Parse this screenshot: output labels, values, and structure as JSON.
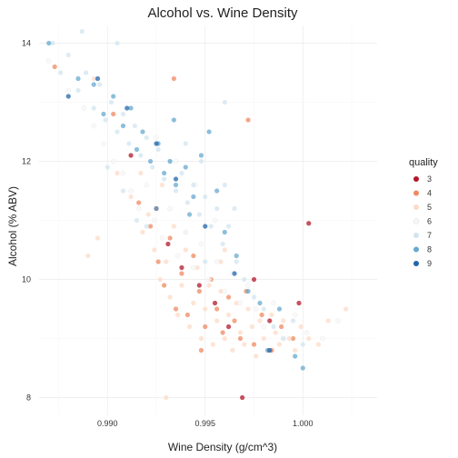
{
  "chart_data": {
    "type": "scatter",
    "title": "Alcohol vs. Wine Density",
    "xlabel": "Wine Density (g/cm^3)",
    "ylabel": "Alcohol (% ABV)",
    "xlim": [
      0.9865,
      1.0038
    ],
    "ylim": [
      7.7,
      14.3
    ],
    "x_ticks": [
      0.99,
      0.995,
      1.0
    ],
    "x_tick_labels": [
      "0.990",
      "0.995",
      "1.000"
    ],
    "y_ticks": [
      8,
      10,
      12,
      14
    ],
    "y_tick_labels": [
      "8",
      "10",
      "12",
      "14"
    ],
    "grid": true,
    "legend": {
      "title": "quality",
      "placement": "right",
      "entries": [
        {
          "label": "3",
          "color": "#b2182b"
        },
        {
          "label": "4",
          "color": "#ef8a62"
        },
        {
          "label": "5",
          "color": "#fddbc7"
        },
        {
          "label": "6",
          "color": "#f7f7f7"
        },
        {
          "label": "7",
          "color": "#d1e5f0"
        },
        {
          "label": "8",
          "color": "#67a9cf"
        },
        {
          "label": "9",
          "color": "#2166ac"
        }
      ]
    },
    "series": [
      {
        "name": "3",
        "points": [
          [
            0.9912,
            12.1
          ],
          [
            0.9925,
            11.2
          ],
          [
            0.9931,
            10.6
          ],
          [
            0.9938,
            10.2
          ],
          [
            0.9947,
            9.9
          ],
          [
            0.9955,
            9.6
          ],
          [
            0.9962,
            9.2
          ],
          [
            0.9969,
            8.0
          ],
          [
            0.9975,
            10.0
          ],
          [
            0.9983,
            9.3
          ],
          [
            0.9998,
            9.6
          ],
          [
            1.0003,
            10.95
          ]
        ]
      },
      {
        "name": "4",
        "points": [
          [
            0.9873,
            13.6
          ],
          [
            0.9903,
            12.8
          ],
          [
            0.9916,
            11.3
          ],
          [
            0.9922,
            10.9
          ],
          [
            0.9926,
            10.3
          ],
          [
            0.9929,
            9.9
          ],
          [
            0.9932,
            10.7
          ],
          [
            0.9935,
            9.5
          ],
          [
            0.9938,
            10.1
          ],
          [
            0.9941,
            9.4
          ],
          [
            0.9944,
            10.4
          ],
          [
            0.9947,
            9.8
          ],
          [
            0.995,
            9.2
          ],
          [
            0.9953,
            10.0
          ],
          [
            0.9956,
            9.5
          ],
          [
            0.9959,
            9.1
          ],
          [
            0.9962,
            9.7
          ],
          [
            0.9965,
            9.3
          ],
          [
            0.9968,
            9.0
          ],
          [
            0.9971,
            9.8
          ],
          [
            0.9975,
            8.9
          ],
          [
            0.9979,
            9.4
          ],
          [
            0.9984,
            8.8
          ],
          [
            0.9989,
            9.2
          ],
          [
            0.9995,
            9.0
          ],
          [
            0.9934,
            13.4
          ],
          [
            0.9972,
            12.7
          ],
          [
            0.9948,
            8.8
          ]
        ]
      },
      {
        "name": "5",
        "points": [
          [
            0.9905,
            11.8
          ],
          [
            0.9912,
            11.4
          ],
          [
            0.9918,
            10.8
          ],
          [
            0.9921,
            11.1
          ],
          [
            0.9924,
            10.5
          ],
          [
            0.9927,
            10.0
          ],
          [
            0.993,
            10.3
          ],
          [
            0.9932,
            9.7
          ],
          [
            0.9934,
            10.9
          ],
          [
            0.9936,
            9.4
          ],
          [
            0.9938,
            9.9
          ],
          [
            0.994,
            10.5
          ],
          [
            0.9942,
            9.2
          ],
          [
            0.9944,
            9.6
          ],
          [
            0.9946,
            10.2
          ],
          [
            0.9948,
            9.0
          ],
          [
            0.995,
            9.5
          ],
          [
            0.9952,
            9.9
          ],
          [
            0.9954,
            8.9
          ],
          [
            0.9956,
            9.3
          ],
          [
            0.9958,
            9.8
          ],
          [
            0.996,
            9.0
          ],
          [
            0.9962,
            9.4
          ],
          [
            0.9964,
            8.8
          ],
          [
            0.9966,
            9.6
          ],
          [
            0.9968,
            9.1
          ],
          [
            0.997,
            8.9
          ],
          [
            0.9972,
            9.5
          ],
          [
            0.9974,
            9.2
          ],
          [
            0.9976,
            8.7
          ],
          [
            0.9978,
            9.3
          ],
          [
            0.998,
            9.0
          ],
          [
            0.9982,
            8.8
          ],
          [
            0.9984,
            9.4
          ],
          [
            0.9986,
            9.1
          ],
          [
            0.9988,
            8.9
          ],
          [
            0.999,
            9.3
          ],
          [
            0.9993,
            9.0
          ],
          [
            0.9996,
            8.8
          ],
          [
            0.9999,
            9.2
          ],
          [
            1.0003,
            9.0
          ],
          [
            1.0008,
            8.9
          ],
          [
            1.0013,
            9.3
          ],
          [
            1.0022,
            9.5
          ],
          [
            0.9895,
            10.7
          ],
          [
            0.989,
            10.4
          ],
          [
            0.9893,
            13.4
          ],
          [
            0.994,
            10.8
          ],
          [
            0.9958,
            10.3
          ],
          [
            0.996,
            10.5
          ],
          [
            0.993,
            8.0
          ],
          [
            0.9917,
            11.8
          ],
          [
            0.9928,
            11.6
          ]
        ]
      },
      {
        "name": "6",
        "points": [
          [
            0.987,
            13.7
          ],
          [
            0.988,
            13.2
          ],
          [
            0.9888,
            12.9
          ],
          [
            0.9893,
            12.6
          ],
          [
            0.9898,
            12.3
          ],
          [
            0.9903,
            12.0
          ],
          [
            0.9908,
            11.8
          ],
          [
            0.9912,
            11.5
          ],
          [
            0.9916,
            11.2
          ],
          [
            0.992,
            11.6
          ],
          [
            0.9924,
            11.0
          ],
          [
            0.9928,
            10.7
          ],
          [
            0.9932,
            11.2
          ],
          [
            0.9936,
            10.4
          ],
          [
            0.994,
            10.8
          ],
          [
            0.9944,
            10.2
          ],
          [
            0.9948,
            10.6
          ],
          [
            0.9952,
            10.0
          ],
          [
            0.9956,
            10.3
          ],
          [
            0.996,
            9.8
          ],
          [
            0.9964,
            10.1
          ],
          [
            0.9968,
            9.6
          ],
          [
            0.9972,
            9.9
          ],
          [
            0.9976,
            9.5
          ],
          [
            0.998,
            9.2
          ],
          [
            0.9985,
            9.6
          ],
          [
            0.999,
            9.0
          ],
          [
            0.9996,
            9.4
          ],
          [
            1.0002,
            9.1
          ],
          [
            1.001,
            9.0
          ],
          [
            1.0018,
            9.3
          ],
          [
            0.9925,
            12.4
          ],
          [
            0.9935,
            12.0
          ],
          [
            0.9945,
            11.6
          ],
          [
            0.9955,
            11.0
          ]
        ]
      },
      {
        "name": "7",
        "points": [
          [
            0.9872,
            14.0
          ],
          [
            0.9876,
            13.5
          ],
          [
            0.988,
            13.8
          ],
          [
            0.9885,
            13.2
          ],
          [
            0.9889,
            13.5
          ],
          [
            0.9893,
            12.9
          ],
          [
            0.9896,
            13.3
          ],
          [
            0.9899,
            12.7
          ],
          [
            0.9902,
            13.0
          ],
          [
            0.9905,
            12.5
          ],
          [
            0.9908,
            12.8
          ],
          [
            0.9911,
            12.3
          ],
          [
            0.9914,
            12.6
          ],
          [
            0.9917,
            12.1
          ],
          [
            0.992,
            12.4
          ],
          [
            0.9923,
            11.9
          ],
          [
            0.9926,
            12.2
          ],
          [
            0.9929,
            11.7
          ],
          [
            0.9932,
            12.0
          ],
          [
            0.9935,
            11.5
          ],
          [
            0.9938,
            11.8
          ],
          [
            0.9941,
            11.3
          ],
          [
            0.9944,
            11.6
          ],
          [
            0.9947,
            11.1
          ],
          [
            0.995,
            11.4
          ],
          [
            0.9953,
            10.9
          ],
          [
            0.9956,
            11.2
          ],
          [
            0.9959,
            10.6
          ],
          [
            0.9962,
            10.9
          ],
          [
            0.9966,
            10.3
          ],
          [
            0.997,
            10.0
          ],
          [
            0.9975,
            9.7
          ],
          [
            0.998,
            9.5
          ],
          [
            0.9985,
            9.2
          ],
          [
            0.999,
            9.0
          ],
          [
            0.9995,
            9.3
          ],
          [
            1.0,
            8.9
          ],
          [
            0.9908,
            11.5
          ],
          [
            0.9915,
            11.0
          ],
          [
            0.99,
            11.9
          ],
          [
            0.994,
            12.3
          ],
          [
            0.9948,
            12.0
          ],
          [
            0.996,
            11.6
          ],
          [
            0.9965,
            11.2
          ],
          [
            0.9887,
            14.2
          ],
          [
            0.9905,
            14.0
          ],
          [
            0.996,
            13.0
          ],
          [
            0.992,
            10.9
          ],
          [
            0.995,
            10.3
          ]
        ]
      },
      {
        "name": "8",
        "points": [
          [
            0.987,
            14.0
          ],
          [
            0.9885,
            13.4
          ],
          [
            0.9893,
            13.3
          ],
          [
            0.9898,
            12.8
          ],
          [
            0.9903,
            13.1
          ],
          [
            0.9908,
            12.6
          ],
          [
            0.9912,
            12.9
          ],
          [
            0.9915,
            12.2
          ],
          [
            0.9918,
            12.5
          ],
          [
            0.9922,
            12.0
          ],
          [
            0.9926,
            12.3
          ],
          [
            0.9929,
            11.8
          ],
          [
            0.9932,
            12.0
          ],
          [
            0.9935,
            11.6
          ],
          [
            0.994,
            11.9
          ],
          [
            0.9944,
            11.4
          ],
          [
            0.9948,
            12.1
          ],
          [
            0.9952,
            12.5
          ],
          [
            0.9956,
            11.5
          ],
          [
            0.996,
            10.8
          ],
          [
            0.9966,
            10.4
          ],
          [
            0.9972,
            9.8
          ],
          [
            0.9978,
            9.6
          ],
          [
            0.9982,
            8.8
          ],
          [
            0.9988,
            9.5
          ],
          [
            0.9996,
            8.7
          ],
          [
            1.0,
            8.5
          ],
          [
            0.9925,
            11.2
          ],
          [
            0.9934,
            12.7
          ],
          [
            0.9942,
            11.1
          ]
        ]
      },
      {
        "name": "9",
        "points": [
          [
            0.988,
            13.1
          ],
          [
            0.9895,
            13.4
          ],
          [
            0.991,
            12.9
          ],
          [
            0.9925,
            12.3
          ],
          [
            0.9935,
            11.7
          ],
          [
            0.995,
            10.9
          ],
          [
            0.9965,
            10.1
          ],
          [
            0.9983,
            8.8
          ]
        ]
      }
    ]
  }
}
